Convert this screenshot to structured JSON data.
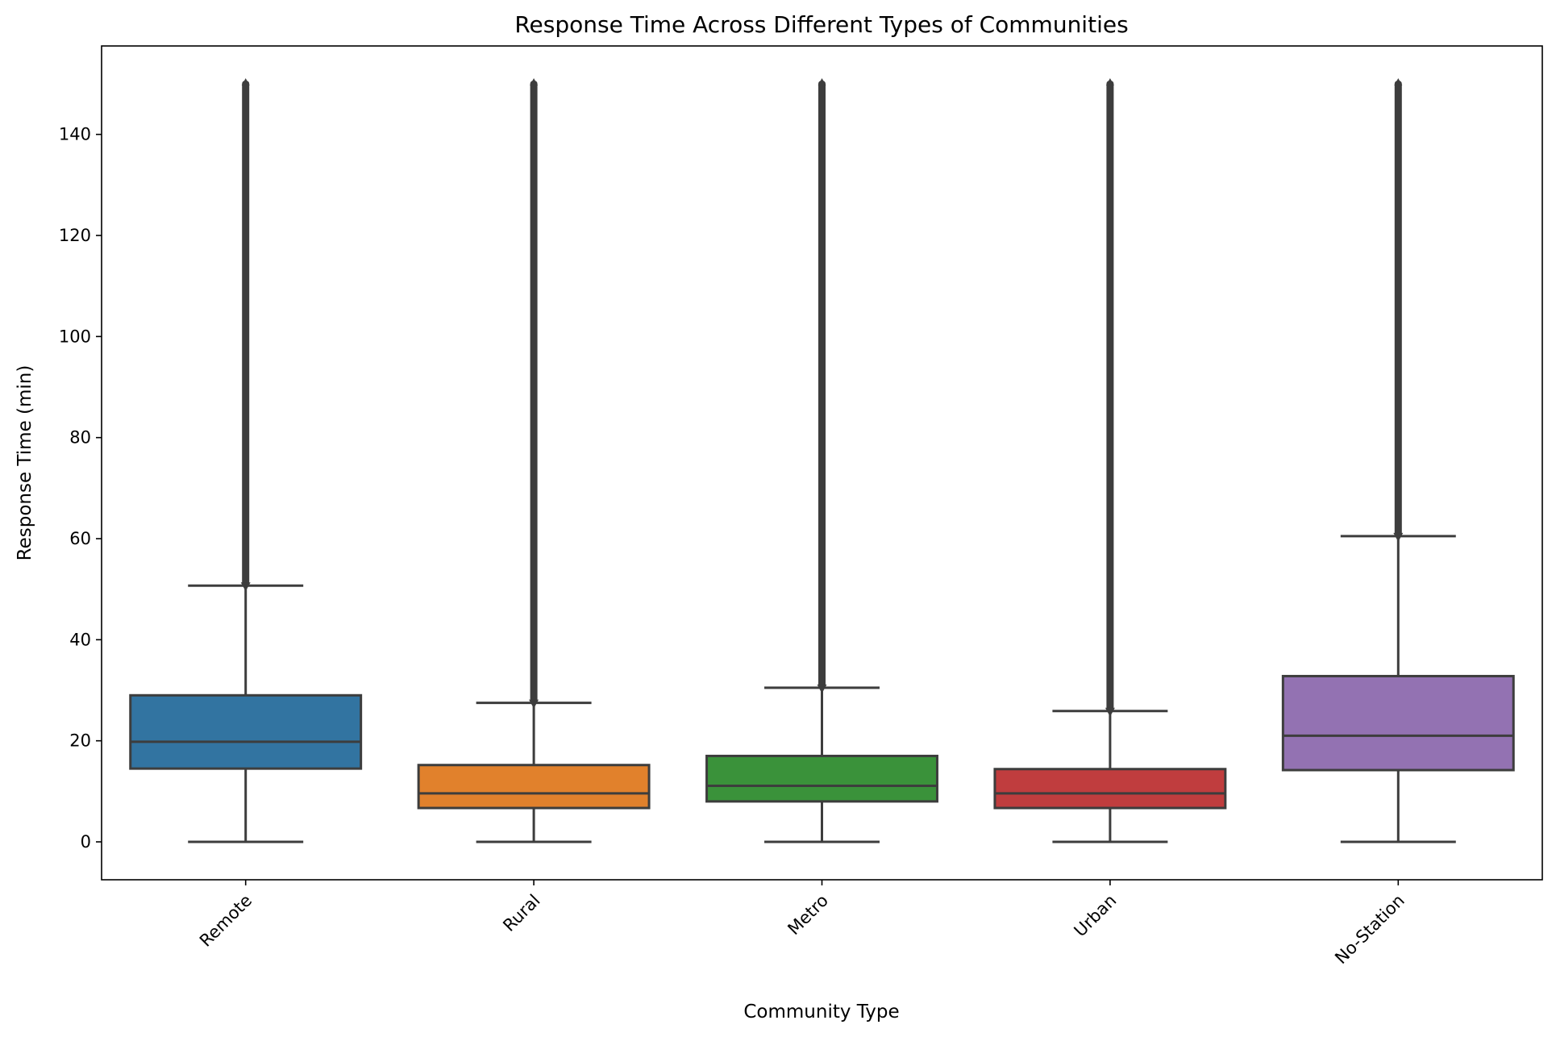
{
  "chart_data": {
    "type": "box",
    "title": "Response Time Across Different Types of Communities",
    "xlabel": "Community Type",
    "ylabel": "Response Time (min)",
    "ylim": [
      -7.5,
      157.5
    ],
    "yticks": [
      0,
      20,
      40,
      60,
      80,
      100,
      120,
      140
    ],
    "grid": false,
    "categories": [
      "Remote",
      "Rural",
      "Metro",
      "Urban",
      "No-Station"
    ],
    "series": [
      {
        "category": "Remote",
        "color": "#3274a1",
        "whisker_low": 0,
        "q1": 14.5,
        "median": 19.8,
        "q3": 29.0,
        "whisker_high": 50.7,
        "outliers_range": [
          50.7,
          150
        ]
      },
      {
        "category": "Rural",
        "color": "#e1812c",
        "whisker_low": 0,
        "q1": 6.7,
        "median": 9.6,
        "q3": 15.2,
        "whisker_high": 27.5,
        "outliers_range": [
          27.5,
          150
        ]
      },
      {
        "category": "Metro",
        "color": "#3a923a",
        "whisker_low": 0,
        "q1": 8.0,
        "median": 11.1,
        "q3": 17.0,
        "whisker_high": 30.5,
        "outliers_range": [
          30.5,
          150
        ]
      },
      {
        "category": "Urban",
        "color": "#c03d3e",
        "whisker_low": 0,
        "q1": 6.7,
        "median": 9.6,
        "q3": 14.4,
        "whisker_high": 25.9,
        "outliers_range": [
          25.9,
          150
        ]
      },
      {
        "category": "No-Station",
        "color": "#9372b2",
        "whisker_low": 0,
        "q1": 14.2,
        "median": 21.0,
        "q3": 32.8,
        "whisker_high": 60.5,
        "outliers_range": [
          60.5,
          150
        ]
      }
    ]
  }
}
